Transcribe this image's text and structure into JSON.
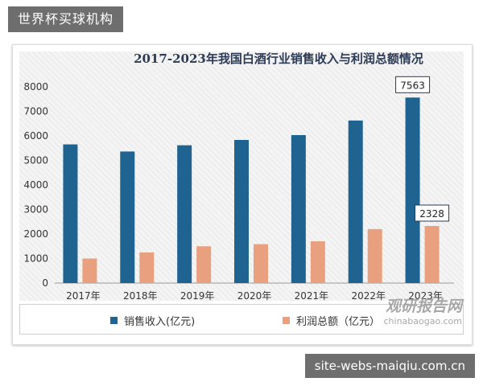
{
  "top_label": "世界杯买球机构",
  "bottom_label": "site-webs-maiqiu.com.cn",
  "watermark": {
    "brand": "观研报告网",
    "url": "chinabaogao.com"
  },
  "chart_data": {
    "type": "bar",
    "title": "2017-2023年我国白酒行业销售收入与利润总额情况",
    "categories": [
      "2017年",
      "2018年",
      "2019年",
      "2020年",
      "2021年",
      "2022年",
      "2023年"
    ],
    "series": [
      {
        "name": "销售收入(亿元)",
        "color": "#1f6391",
        "values": [
          5654,
          5364,
          5618,
          5836,
          6033,
          6627,
          7563
        ]
      },
      {
        "name": "利润总额（亿元）",
        "color": "#e8a07e",
        "values": [
          1000,
          1250,
          1500,
          1585,
          1702,
          2201,
          2328
        ]
      }
    ],
    "data_labels": [
      {
        "series": 0,
        "index": 6,
        "text": "7563"
      },
      {
        "series": 1,
        "index": 6,
        "text": "2328"
      }
    ],
    "yticks": [
      "0",
      "1000",
      "2000",
      "3000",
      "4000",
      "5000",
      "6000",
      "7000",
      "8000"
    ],
    "ylim": [
      0,
      8000
    ],
    "xlabel": "",
    "ylabel": "",
    "legend_position": "bottom"
  }
}
